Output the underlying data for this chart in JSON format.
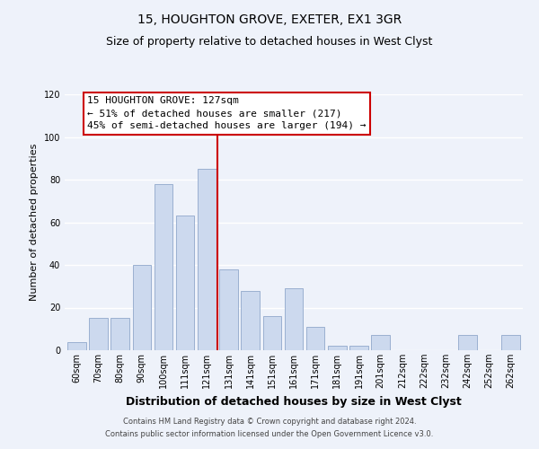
{
  "title": "15, HOUGHTON GROVE, EXETER, EX1 3GR",
  "subtitle": "Size of property relative to detached houses in West Clyst",
  "xlabel": "Distribution of detached houses by size in West Clyst",
  "ylabel": "Number of detached properties",
  "bar_labels": [
    "60sqm",
    "70sqm",
    "80sqm",
    "90sqm",
    "100sqm",
    "111sqm",
    "121sqm",
    "131sqm",
    "141sqm",
    "151sqm",
    "161sqm",
    "171sqm",
    "181sqm",
    "191sqm",
    "201sqm",
    "212sqm",
    "222sqm",
    "232sqm",
    "242sqm",
    "252sqm",
    "262sqm"
  ],
  "bar_values": [
    4,
    15,
    15,
    40,
    78,
    63,
    85,
    38,
    28,
    16,
    29,
    11,
    2,
    2,
    7,
    0,
    0,
    0,
    7,
    0,
    7
  ],
  "bar_color": "#ccd9ee",
  "bar_edge_color": "#9ab0d0",
  "vline_color": "#cc0000",
  "annotation_title": "15 HOUGHTON GROVE: 127sqm",
  "annotation_line1": "← 51% of detached houses are smaller (217)",
  "annotation_line2": "45% of semi-detached houses are larger (194) →",
  "annotation_box_facecolor": "#ffffff",
  "annotation_box_edgecolor": "#cc0000",
  "ylim": [
    0,
    120
  ],
  "yticks": [
    0,
    20,
    40,
    60,
    80,
    100,
    120
  ],
  "footer1": "Contains HM Land Registry data © Crown copyright and database right 2024.",
  "footer2": "Contains public sector information licensed under the Open Government Licence v3.0.",
  "bg_color": "#eef2fa",
  "plot_bg_color": "#eef2fa",
  "grid_color": "#ffffff",
  "title_fontsize": 10,
  "subtitle_fontsize": 9,
  "ylabel_fontsize": 8,
  "xlabel_fontsize": 9,
  "tick_fontsize": 7,
  "ann_fontsize": 8,
  "footer_fontsize": 6
}
